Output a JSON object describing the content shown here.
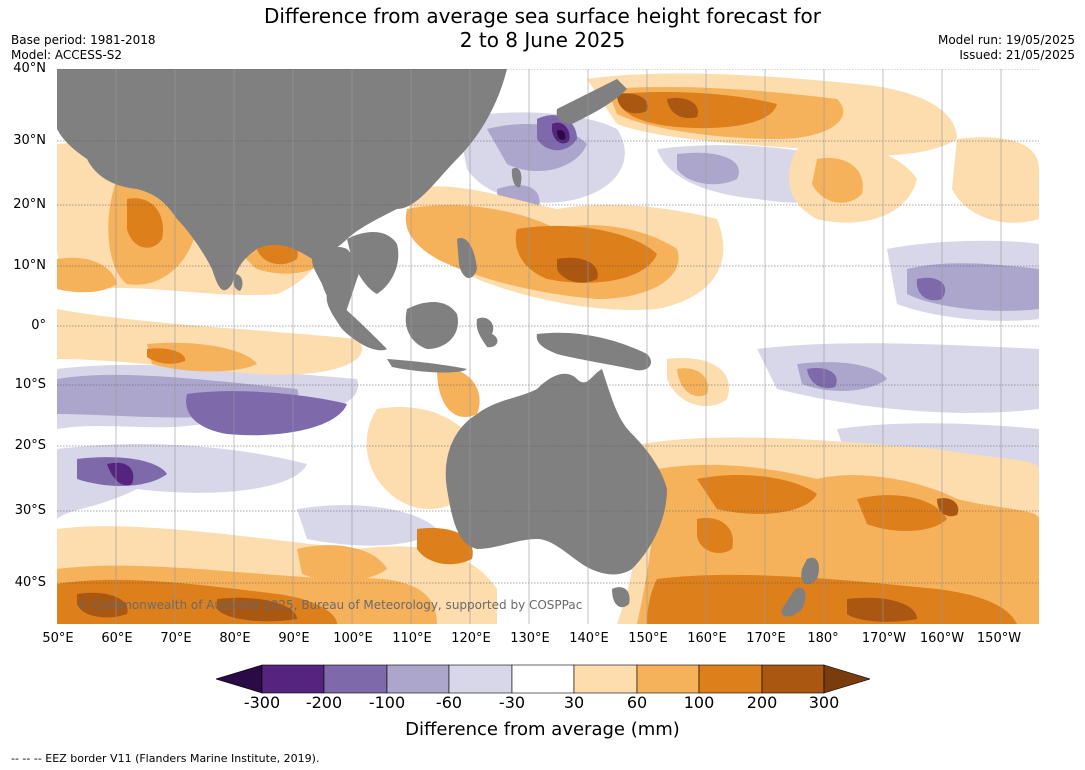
{
  "title_line1": "Difference from average sea surface height forecast for",
  "title_line2": "2 to 8 June 2025",
  "base_period": "Base period: 1981-2018",
  "model": "Model: ACCESS-S2",
  "model_run": "Model run: 19/05/2025",
  "issued": "Issued: 21/05/2025",
  "lat_labels": [
    "40°N",
    "30°N",
    "20°N",
    "10°N",
    "0°",
    "10°S",
    "20°S",
    "30°S",
    "40°S"
  ],
  "lon_labels": [
    "50°E",
    "60°E",
    "70°E",
    "80°E",
    "90°E",
    "100°E",
    "110°E",
    "120°E",
    "130°E",
    "140°E",
    "150°E",
    "160°E",
    "170°E",
    "180°",
    "170°W",
    "160°W",
    "150°W"
  ],
  "copyright": "© Commonwealth of Australia 2025, Bureau of Meteorology, supported by COSPPac",
  "colorbar": {
    "ticks": [
      "-300",
      "-200",
      "-100",
      "-60",
      "-30",
      "30",
      "60",
      "100",
      "200",
      "300"
    ],
    "colors": [
      "#55247e",
      "#7e6aab",
      "#aca5cc",
      "#d7d7e9",
      "#ffffff",
      "#fddcad",
      "#f6b15b",
      "#dd7f1b",
      "#aa5712"
    ],
    "under_color": "#2a0b45",
    "over_color": "#7a3c0d",
    "label": "Difference from average (mm)"
  },
  "footnote": "--  --  -- EEZ border V11 (Flanders Marine Institute, 2019).",
  "land_color": "#808080"
}
